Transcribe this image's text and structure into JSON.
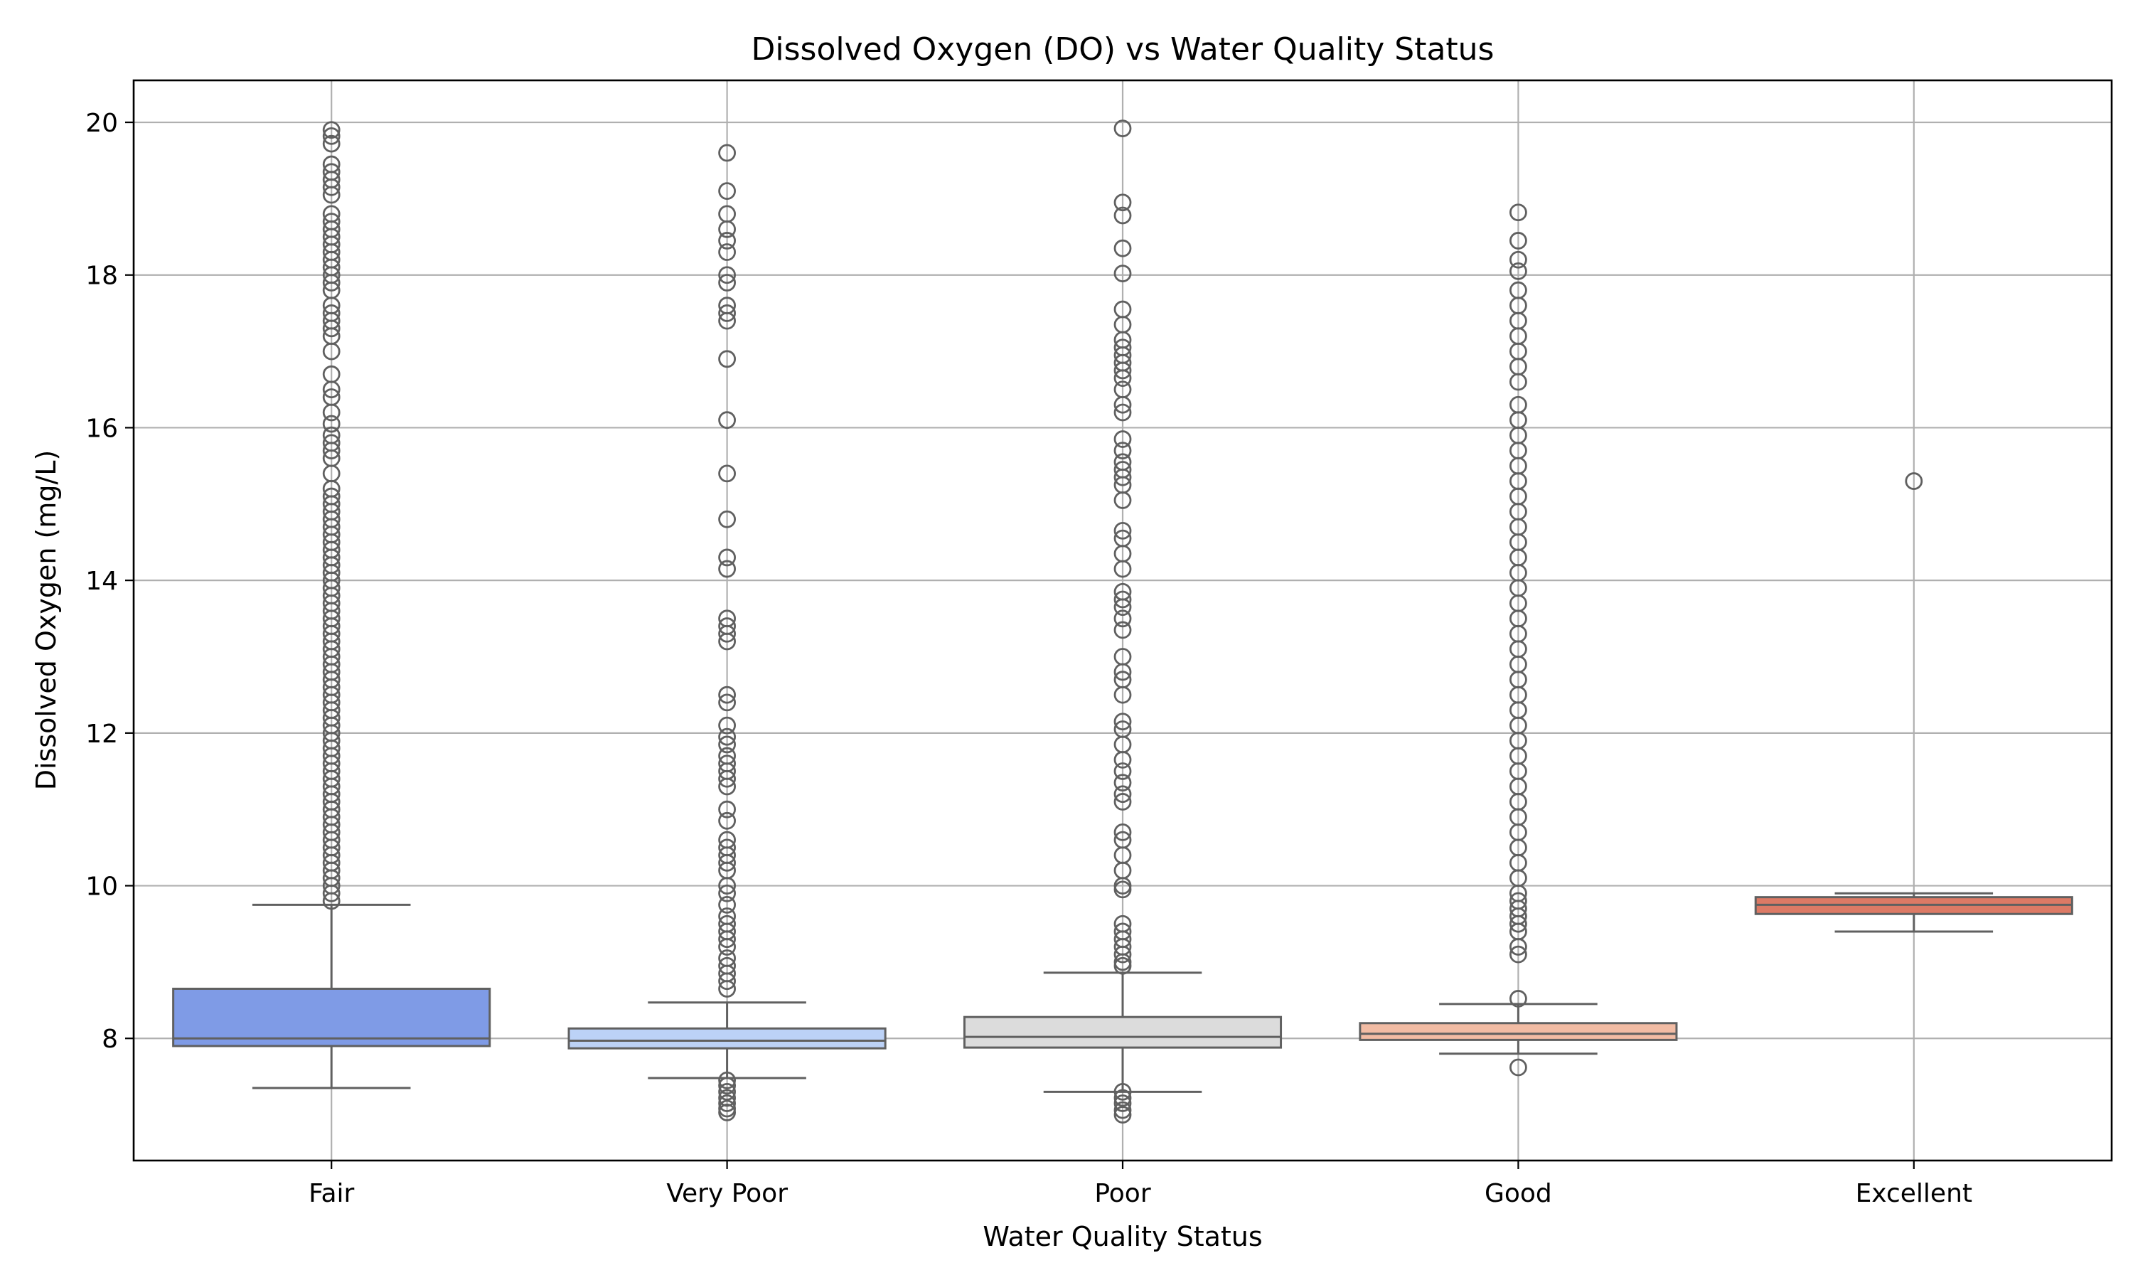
{
  "chart_data": {
    "type": "box",
    "title": "Dissolved Oxygen (DO) vs Water Quality Status",
    "xlabel": "Water Quality Status",
    "ylabel": "Dissolved Oxygen (mg/L)",
    "ylim": [
      6.4,
      20.55
    ],
    "yticks": [
      8,
      10,
      12,
      14,
      16,
      18,
      20
    ],
    "grid": true,
    "categories": [
      "Fair",
      "Very Poor",
      "Poor",
      "Good",
      "Excellent"
    ],
    "colors": [
      "#7f9be6",
      "#bcd2f7",
      "#dcdcdc",
      "#f2bca4",
      "#dd7a65"
    ],
    "boxes": [
      {
        "category": "Fair",
        "whisker_low": 7.35,
        "q1": 7.9,
        "median": 8.0,
        "q3": 8.65,
        "whisker_high": 9.75,
        "outliers": [
          19.9,
          19.82,
          19.72,
          19.45,
          19.35,
          19.25,
          19.15,
          19.05,
          18.8,
          18.7,
          18.6,
          18.5,
          18.4,
          18.3,
          18.2,
          18.1,
          18.0,
          17.9,
          17.8,
          17.6,
          17.5,
          17.4,
          17.3,
          17.2,
          17.0,
          16.7,
          16.5,
          16.4,
          16.2,
          16.05,
          15.9,
          15.8,
          15.7,
          15.6,
          15.4,
          15.2,
          15.1,
          15.0,
          14.9,
          14.8,
          14.7,
          14.6,
          14.5,
          14.4,
          14.3,
          14.2,
          14.1,
          14.0,
          13.9,
          13.8,
          13.7,
          13.6,
          13.5,
          13.4,
          13.3,
          13.2,
          13.1,
          13.0,
          12.9,
          12.8,
          12.7,
          12.6,
          12.5,
          12.4,
          12.3,
          12.2,
          12.1,
          12.0,
          11.9,
          11.8,
          11.7,
          11.6,
          11.5,
          11.4,
          11.3,
          11.2,
          11.1,
          11.0,
          10.9,
          10.8,
          10.7,
          10.6,
          10.5,
          10.4,
          10.3,
          10.2,
          10.1,
          10.0,
          9.9,
          9.8
        ]
      },
      {
        "category": "Very Poor",
        "whisker_low": 7.48,
        "q1": 7.87,
        "median": 7.97,
        "q3": 8.13,
        "whisker_high": 8.47,
        "outliers": [
          19.6,
          19.1,
          18.8,
          18.6,
          18.45,
          18.3,
          18.0,
          17.9,
          17.6,
          17.5,
          17.4,
          16.9,
          16.1,
          15.4,
          14.8,
          14.3,
          14.15,
          13.5,
          13.4,
          13.3,
          13.2,
          12.5,
          12.4,
          12.1,
          11.95,
          11.85,
          11.7,
          11.6,
          11.5,
          11.4,
          11.3,
          11.0,
          10.85,
          10.6,
          10.5,
          10.4,
          10.3,
          10.2,
          10.0,
          9.9,
          9.75,
          9.6,
          9.5,
          9.4,
          9.3,
          9.2,
          9.05,
          8.95,
          8.85,
          8.75,
          8.65,
          7.45,
          7.38,
          7.3,
          7.22,
          7.15,
          7.08,
          7.03
        ]
      },
      {
        "category": "Poor",
        "whisker_low": 7.3,
        "q1": 7.88,
        "median": 8.02,
        "q3": 8.28,
        "whisker_high": 8.86,
        "outliers": [
          19.92,
          18.95,
          18.78,
          18.35,
          18.02,
          17.55,
          17.35,
          17.15,
          17.05,
          16.95,
          16.85,
          16.75,
          16.65,
          16.5,
          16.3,
          16.2,
          15.85,
          15.7,
          15.55,
          15.45,
          15.35,
          15.25,
          15.05,
          14.65,
          14.55,
          14.35,
          14.15,
          13.85,
          13.75,
          13.65,
          13.5,
          13.35,
          13.0,
          12.8,
          12.7,
          12.5,
          12.15,
          12.05,
          11.85,
          11.65,
          11.5,
          11.35,
          11.2,
          11.1,
          10.7,
          10.6,
          10.4,
          10.2,
          10.0,
          9.95,
          9.5,
          9.4,
          9.3,
          9.2,
          9.1,
          9.0,
          8.95,
          7.3,
          7.22,
          7.15,
          7.06,
          7.0
        ]
      },
      {
        "category": "Good",
        "whisker_low": 7.8,
        "q1": 7.98,
        "median": 8.06,
        "q3": 8.2,
        "whisker_high": 8.45,
        "outliers": [
          18.82,
          18.45,
          18.2,
          18.05,
          17.8,
          17.6,
          17.4,
          17.2,
          17.0,
          16.8,
          16.6,
          16.3,
          16.1,
          15.9,
          15.7,
          15.5,
          15.3,
          15.1,
          14.9,
          14.7,
          14.5,
          14.3,
          14.1,
          13.9,
          13.7,
          13.5,
          13.3,
          13.1,
          12.9,
          12.7,
          12.5,
          12.3,
          12.1,
          11.9,
          11.7,
          11.5,
          11.3,
          11.1,
          10.9,
          10.7,
          10.5,
          10.3,
          10.1,
          9.9,
          9.8,
          9.7,
          9.6,
          9.5,
          9.4,
          9.2,
          9.1,
          8.52,
          7.62
        ]
      },
      {
        "category": "Excellent",
        "whisker_low": 9.4,
        "q1": 9.63,
        "median": 9.75,
        "q3": 9.85,
        "whisker_high": 9.9,
        "outliers": [
          15.3
        ]
      }
    ]
  }
}
